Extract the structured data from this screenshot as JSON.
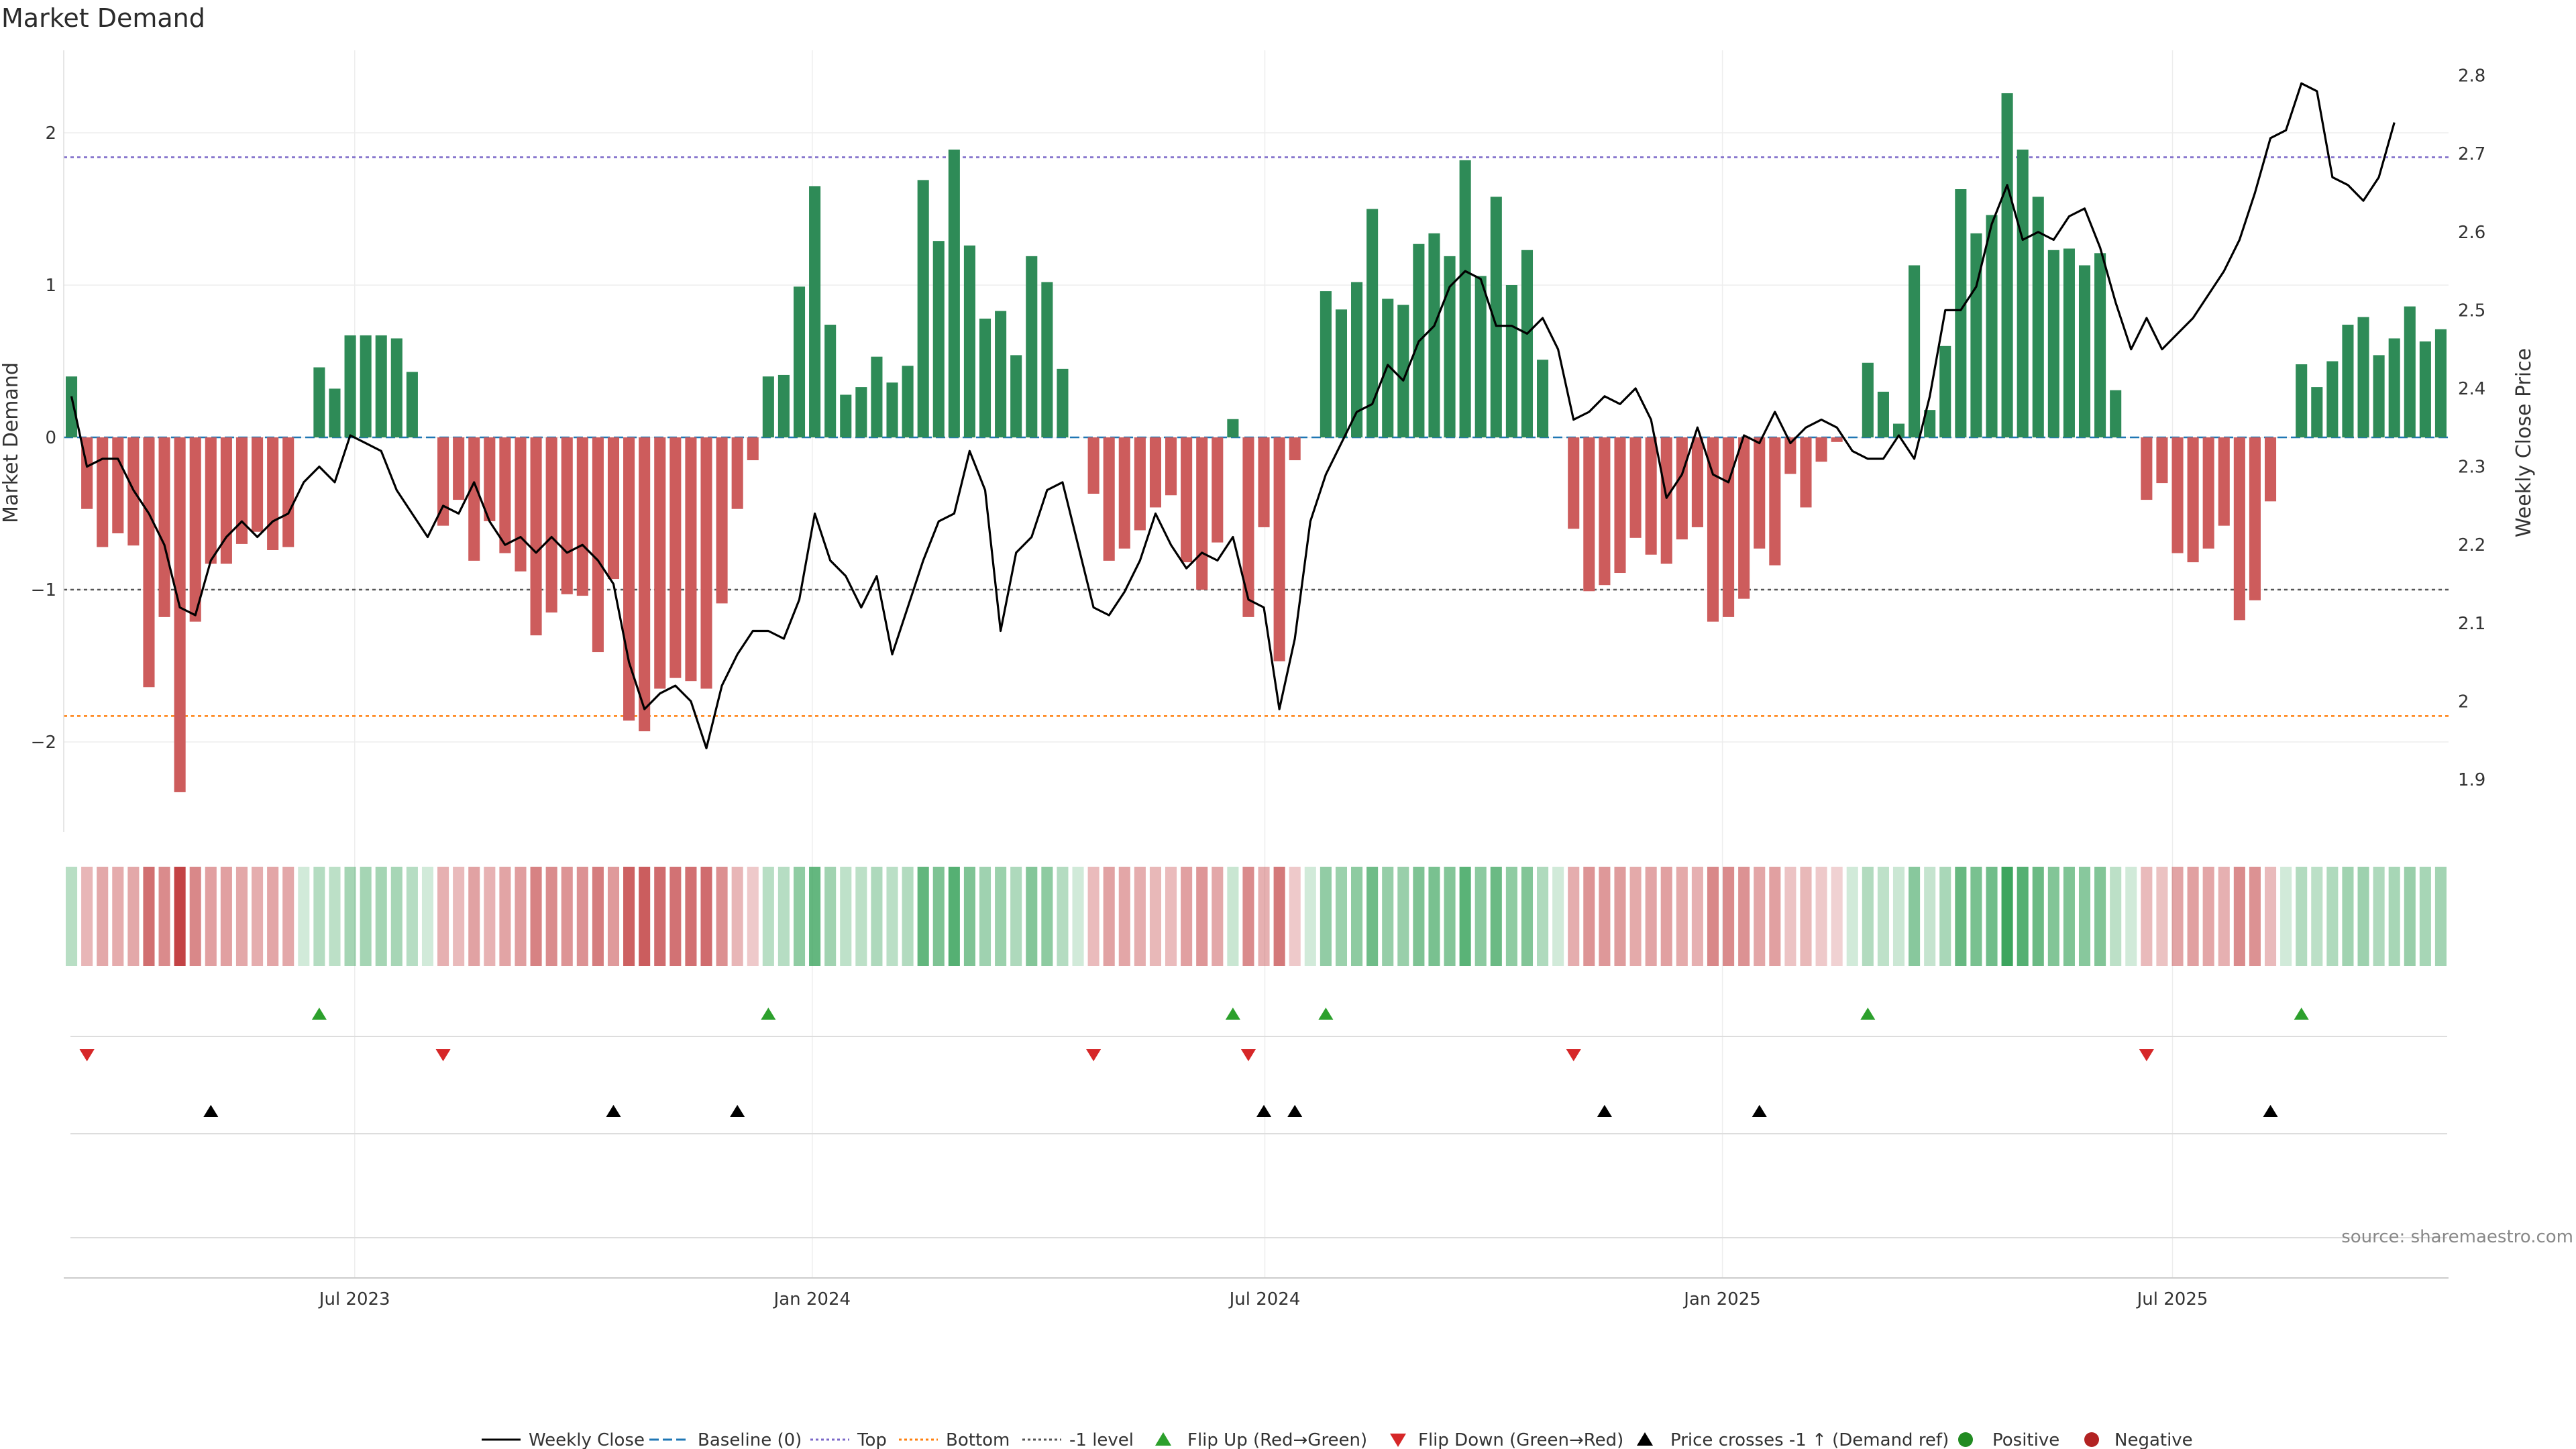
{
  "chart_data": {
    "type": "bar",
    "title": "Market Demand",
    "ylabel": "Market Demand",
    "y2label": "Weekly Close Price",
    "ylim": [
      -2.55,
      2.55
    ],
    "y2lim": [
      1.84,
      2.84
    ],
    "yticks": [
      -2,
      -1,
      0,
      1,
      2
    ],
    "y2ticks": [
      1.9,
      2.0,
      2.1,
      2.2,
      2.3,
      2.4,
      2.5,
      2.6,
      2.7,
      2.8
    ],
    "y2ticklabels": [
      "1.9",
      "2",
      "2.1",
      "2.2",
      "2.3",
      "2.4",
      "2.5",
      "2.6",
      "2.7",
      "2.8"
    ],
    "x_start": "2023-03-06",
    "x_end": "2025-10-20",
    "xticks": [
      {
        "date": "2023-07-01",
        "label": "Jul 2023"
      },
      {
        "date": "2024-01-01",
        "label": "Jan 2024"
      },
      {
        "date": "2024-07-01",
        "label": "Jul 2024"
      },
      {
        "date": "2025-01-01",
        "label": "Jan 2025"
      },
      {
        "date": "2025-07-01",
        "label": "Jul 2025"
      }
    ],
    "reference_lines": [
      {
        "name": "Baseline (0)",
        "value": 0,
        "color": "#1f77b4",
        "style": "dashed"
      },
      {
        "name": "Top",
        "value": 1.84,
        "color": "#7b68c8",
        "style": "dotted"
      },
      {
        "name": "Bottom",
        "value": -1.83,
        "color": "#ff7f0e",
        "style": "dotted"
      },
      {
        "name": "-1 level",
        "value": -1,
        "color": "#555555",
        "style": "dotted"
      }
    ],
    "demand": [
      0.4,
      -0.47,
      -0.72,
      -0.63,
      -0.71,
      -1.64,
      -1.18,
      -2.33,
      -1.21,
      -0.83,
      -0.83,
      -0.7,
      -0.62,
      -0.74,
      -0.72,
      0,
      0.46,
      0.32,
      0.67,
      0.67,
      0.67,
      0.65,
      0.43,
      0,
      -0.58,
      -0.41,
      -0.81,
      -0.55,
      -0.76,
      -0.88,
      -1.3,
      -1.15,
      -1.03,
      -1.04,
      -1.41,
      -0.93,
      -1.86,
      -1.93,
      -1.65,
      -1.58,
      -1.6,
      -1.65,
      -1.09,
      -0.47,
      -0.15,
      0.4,
      0.41,
      0.99,
      1.65,
      0.74,
      0.28,
      0.33,
      0.53,
      0.36,
      0.47,
      1.69,
      1.29,
      1.89,
      1.26,
      0.78,
      0.83,
      0.54,
      1.19,
      1.02,
      0.45,
      0,
      -0.37,
      -0.81,
      -0.73,
      -0.61,
      -0.46,
      -0.38,
      -0.82,
      -1.0,
      -0.69,
      0.12,
      -1.18,
      -0.59,
      -1.47,
      -0.15,
      0,
      0.96,
      0.84,
      1.02,
      1.5,
      0.91,
      0.87,
      1.27,
      1.34,
      1.19,
      1.82,
      1.06,
      1.58,
      1.0,
      1.23,
      0.51,
      0,
      -0.6,
      -1.01,
      -0.97,
      -0.89,
      -0.66,
      -0.77,
      -0.83,
      -0.67,
      -0.59,
      -1.21,
      -1.18,
      -1.06,
      -0.73,
      -0.84,
      -0.24,
      -0.46,
      -0.16,
      -0.03,
      0,
      0.49,
      0.3,
      0.09,
      1.13,
      0.18,
      0.6,
      1.63,
      1.34,
      1.46,
      2.26,
      1.89,
      1.58,
      1.23,
      1.24,
      1.13,
      1.21,
      0.31,
      0,
      -0.41,
      -0.3,
      -0.76,
      -0.82,
      -0.73,
      -0.58,
      -1.2,
      -1.07,
      -0.42,
      0,
      0.48,
      0.33,
      0.5,
      0.74,
      0.79,
      0.54,
      0.65,
      0.86,
      0.63,
      0.71
    ],
    "weekly_close": [
      2.39,
      2.3,
      2.31,
      2.31,
      2.27,
      2.24,
      2.2,
      2.12,
      2.11,
      2.18,
      2.21,
      2.23,
      2.21,
      2.23,
      2.24,
      2.28,
      2.3,
      2.28,
      2.34,
      2.33,
      2.32,
      2.27,
      2.24,
      2.21,
      2.25,
      2.24,
      2.28,
      2.23,
      2.2,
      2.21,
      2.19,
      2.21,
      2.19,
      2.2,
      2.18,
      2.15,
      2.05,
      1.99,
      2.01,
      2.02,
      2.0,
      1.94,
      2.02,
      2.06,
      2.09,
      2.09,
      2.08,
      2.13,
      2.24,
      2.18,
      2.16,
      2.12,
      2.16,
      2.06,
      2.12,
      2.18,
      2.23,
      2.24,
      2.32,
      2.27,
      2.09,
      2.19,
      2.21,
      2.27,
      2.28,
      2.2,
      2.12,
      2.11,
      2.14,
      2.18,
      2.24,
      2.2,
      2.17,
      2.19,
      2.18,
      2.21,
      2.13,
      2.12,
      1.99,
      2.08,
      2.23,
      2.29,
      2.33,
      2.37,
      2.38,
      2.43,
      2.41,
      2.46,
      2.48,
      2.53,
      2.55,
      2.54,
      2.48,
      2.48,
      2.47,
      2.49,
      2.45,
      2.36,
      2.37,
      2.39,
      2.38,
      2.4,
      2.36,
      2.26,
      2.29,
      2.35,
      2.29,
      2.28,
      2.34,
      2.33,
      2.37,
      2.33,
      2.35,
      2.36,
      2.35,
      2.32,
      2.31,
      2.31,
      2.34,
      2.31,
      2.39,
      2.5,
      2.5,
      2.53,
      2.61,
      2.66,
      2.59,
      2.6,
      2.59,
      2.62,
      2.63,
      2.58,
      2.51,
      2.45,
      2.49,
      2.45,
      2.47,
      2.49,
      2.52,
      2.55,
      2.59,
      2.65,
      2.72,
      2.73,
      2.79,
      2.78,
      2.67,
      2.66,
      2.64,
      2.67,
      2.74
    ]
  },
  "legend": {
    "weekly_close": "Weekly Close",
    "baseline": "Baseline (0)",
    "top": "Top",
    "bottom": "Bottom",
    "minus1": "-1 level",
    "flip_up": "Flip Up (Red→Green)",
    "flip_down": "Flip Down (Green→Red)",
    "price_cross": "Price crosses -1 ↑ (Demand ref)",
    "positive": "Positive",
    "negative": "Negative"
  },
  "colors": {
    "positive": "#2e8b57",
    "negative": "#cd5c5c",
    "flip_up": "#2ca02c",
    "flip_down": "#d62728",
    "cross": "#000000",
    "positive_dot": "#228b22",
    "negative_dot": "#b22222",
    "price_line": "#000000"
  },
  "source": "source: sharemaestro.com"
}
